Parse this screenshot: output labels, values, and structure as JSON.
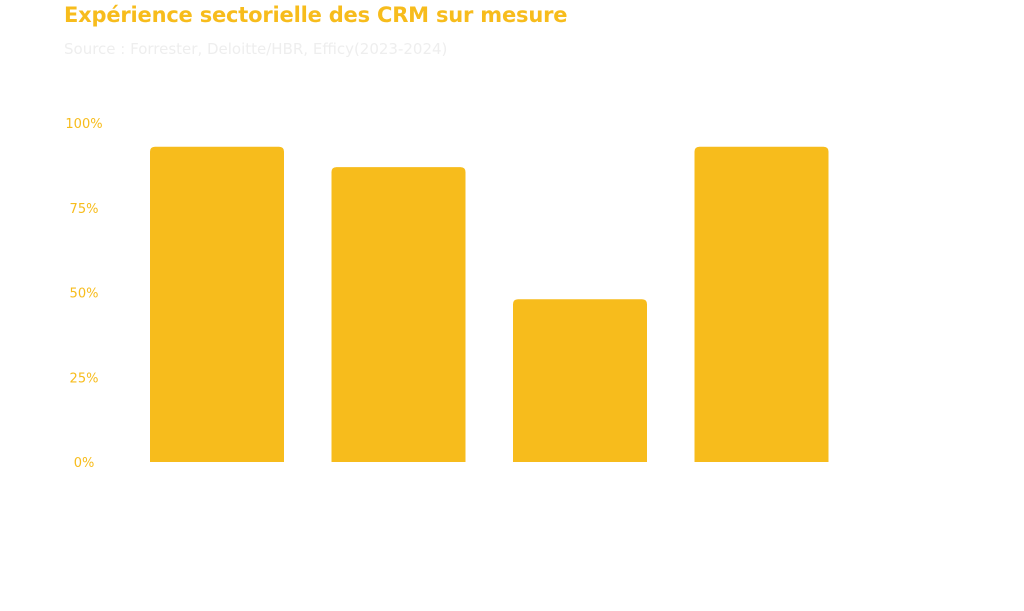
{
  "title": "Expérience sectorielle des CRM sur mesure",
  "subtitle": "Source : Forrester, Deloitte/HBR, Efficy(2023-2024)",
  "colors": {
    "bar": "#F7BC1C",
    "title": "#F7BC1C",
    "tick": "#F7BC1C",
    "subtitle": "#EEEEEE"
  },
  "chart_data": {
    "type": "bar",
    "title": "Expérience sectorielle des CRM sur mesure",
    "subtitle": "Source : Forrester, Deloitte/HBR, Efficy(2023-2024)",
    "categories": [
      "",
      "",
      "",
      ""
    ],
    "values": [
      93,
      87,
      48,
      93
    ],
    "xlabel": "",
    "ylabel": "",
    "ylim": [
      0,
      100
    ],
    "yticks": [
      0,
      25,
      50,
      75,
      100
    ],
    "ytick_labels": [
      "0%",
      "25%",
      "50%",
      "75%",
      "100%"
    ],
    "grid": false,
    "legend": "none"
  }
}
